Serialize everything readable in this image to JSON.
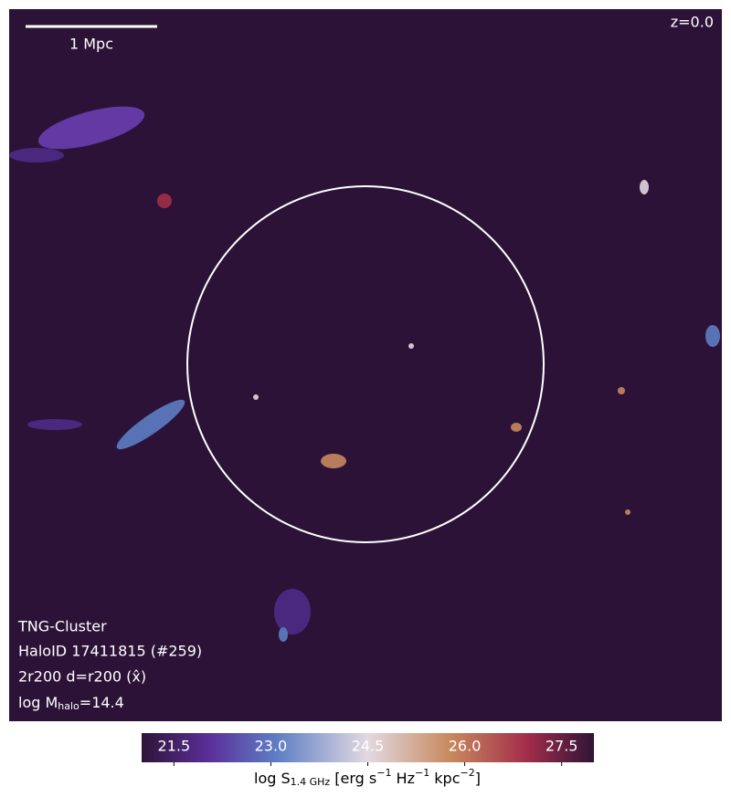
{
  "image": {
    "redshift": "z=0.0",
    "scale_bar": "1 Mpc",
    "info": {
      "line1": "TNG-Cluster",
      "line2": "HaloID 17411815 (#259)",
      "line3": "2r200 d=r200 (x̂)",
      "line4": {
        "main": "log M",
        "sub": "halo",
        "rest": "=14.4"
      }
    }
  },
  "colorbar": {
    "lim": [
      21,
      28
    ],
    "ticks": [
      21.5,
      {
        "value": 23.0,
        "label": "23.0"
      },
      24.5,
      {
        "value": 26.0,
        "label": "26.0"
      },
      27.5
    ],
    "label": {
      "p0": "log S",
      "p1": "1.4 GHz",
      "p2": " [erg s",
      "p3": "−1",
      "p4": " Hz",
      "p5": "−1",
      "p6": " kpc",
      "p7": "−2",
      "p8": "]"
    }
  }
}
